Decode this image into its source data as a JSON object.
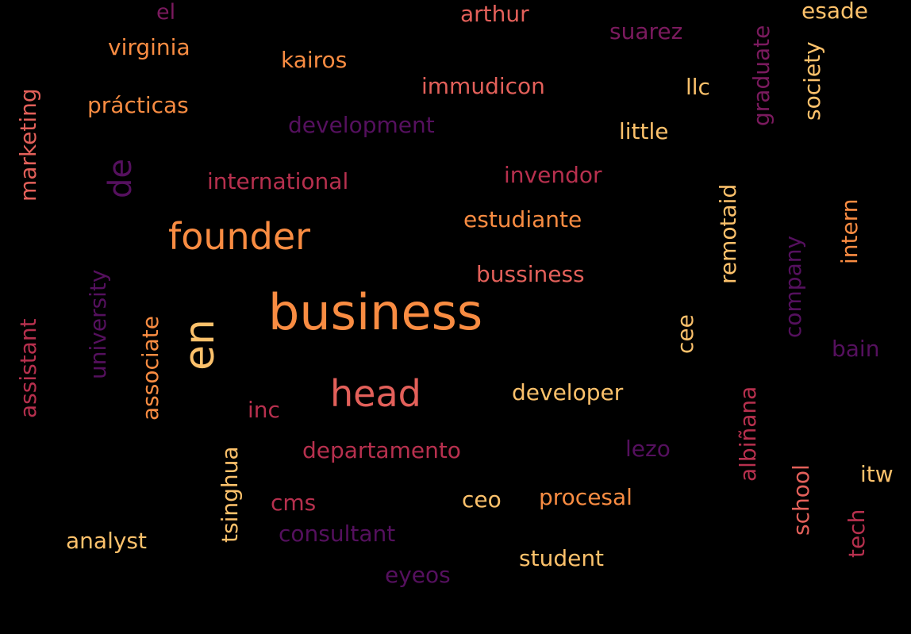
{
  "words": {
    "el": "el",
    "arthur": "arthur",
    "esade": "esade",
    "suarez": "suarez",
    "virginia": "virginia",
    "kairos": "kairos",
    "immudicon": "immudicon",
    "llc": "llc",
    "practicas": "prácticas",
    "development": "development",
    "little": "little",
    "invendor": "invendor",
    "international": "international",
    "estudiante": "estudiante",
    "founder": "founder",
    "bussiness": "bussiness",
    "business": "business",
    "bain": "bain",
    "head": "head",
    "developer": "developer",
    "inc": "inc",
    "departamento": "departamento",
    "lezo": "lezo",
    "itw": "itw",
    "procesal": "procesal",
    "ceo": "ceo",
    "cms": "cms",
    "consultant": "consultant",
    "analyst": "analyst",
    "student": "student",
    "eyeos": "eyeos",
    "marketing": "marketing",
    "de": "de",
    "graduate": "graduate",
    "society": "society",
    "remotaid": "remotaid",
    "intern": "intern",
    "company": "company",
    "university": "university",
    "en": "en",
    "assistant": "assistant",
    "associate": "associate",
    "cee": "cee",
    "albinana": "albiñana",
    "tsinghua": "tsinghua",
    "school": "school",
    "tech": "tech"
  },
  "colors": {
    "background": "#000000",
    "light_orange": "#fcc16b",
    "orange": "#f98c42",
    "salmon": "#e3605a",
    "crimson": "#b7304e",
    "magenta": "#7b1a5e",
    "dark_purple": "#55105e"
  }
}
